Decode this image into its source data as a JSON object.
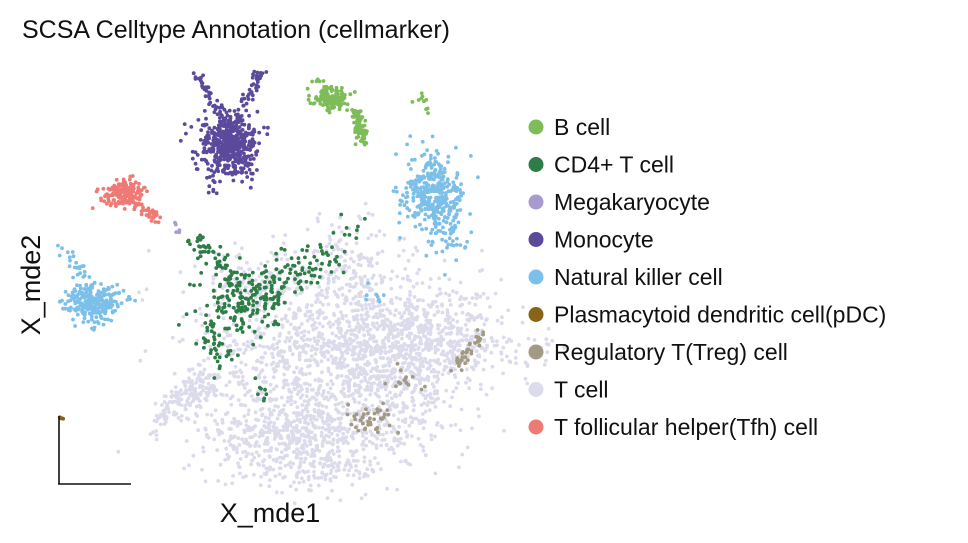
{
  "chart_data": {
    "type": "scatter",
    "title": "SCSA Celltype Annotation (cellmarker)",
    "xlabel": "X_mde1",
    "ylabel": "X_mde2",
    "grid": false,
    "legend_position": "right",
    "categories": [
      {
        "name": "B cell",
        "color": "#7ebc59"
      },
      {
        "name": "CD4+ T cell",
        "color": "#2e7d47"
      },
      {
        "name": "Megakaryocyte",
        "color": "#a99bd0"
      },
      {
        "name": "Monocyte",
        "color": "#5b4a9c"
      },
      {
        "name": "Natural killer cell",
        "color": "#7cc0ea"
      },
      {
        "name": "Plasmacytoid dendritic cell(pDC)",
        "color": "#876416"
      },
      {
        "name": "Regulatory T(Treg) cell",
        "color": "#a39a83"
      },
      {
        "name": "T cell",
        "color": "#dcdbec"
      },
      {
        "name": "T follicular helper(Tfh) cell",
        "color": "#ee7a76"
      }
    ]
  }
}
